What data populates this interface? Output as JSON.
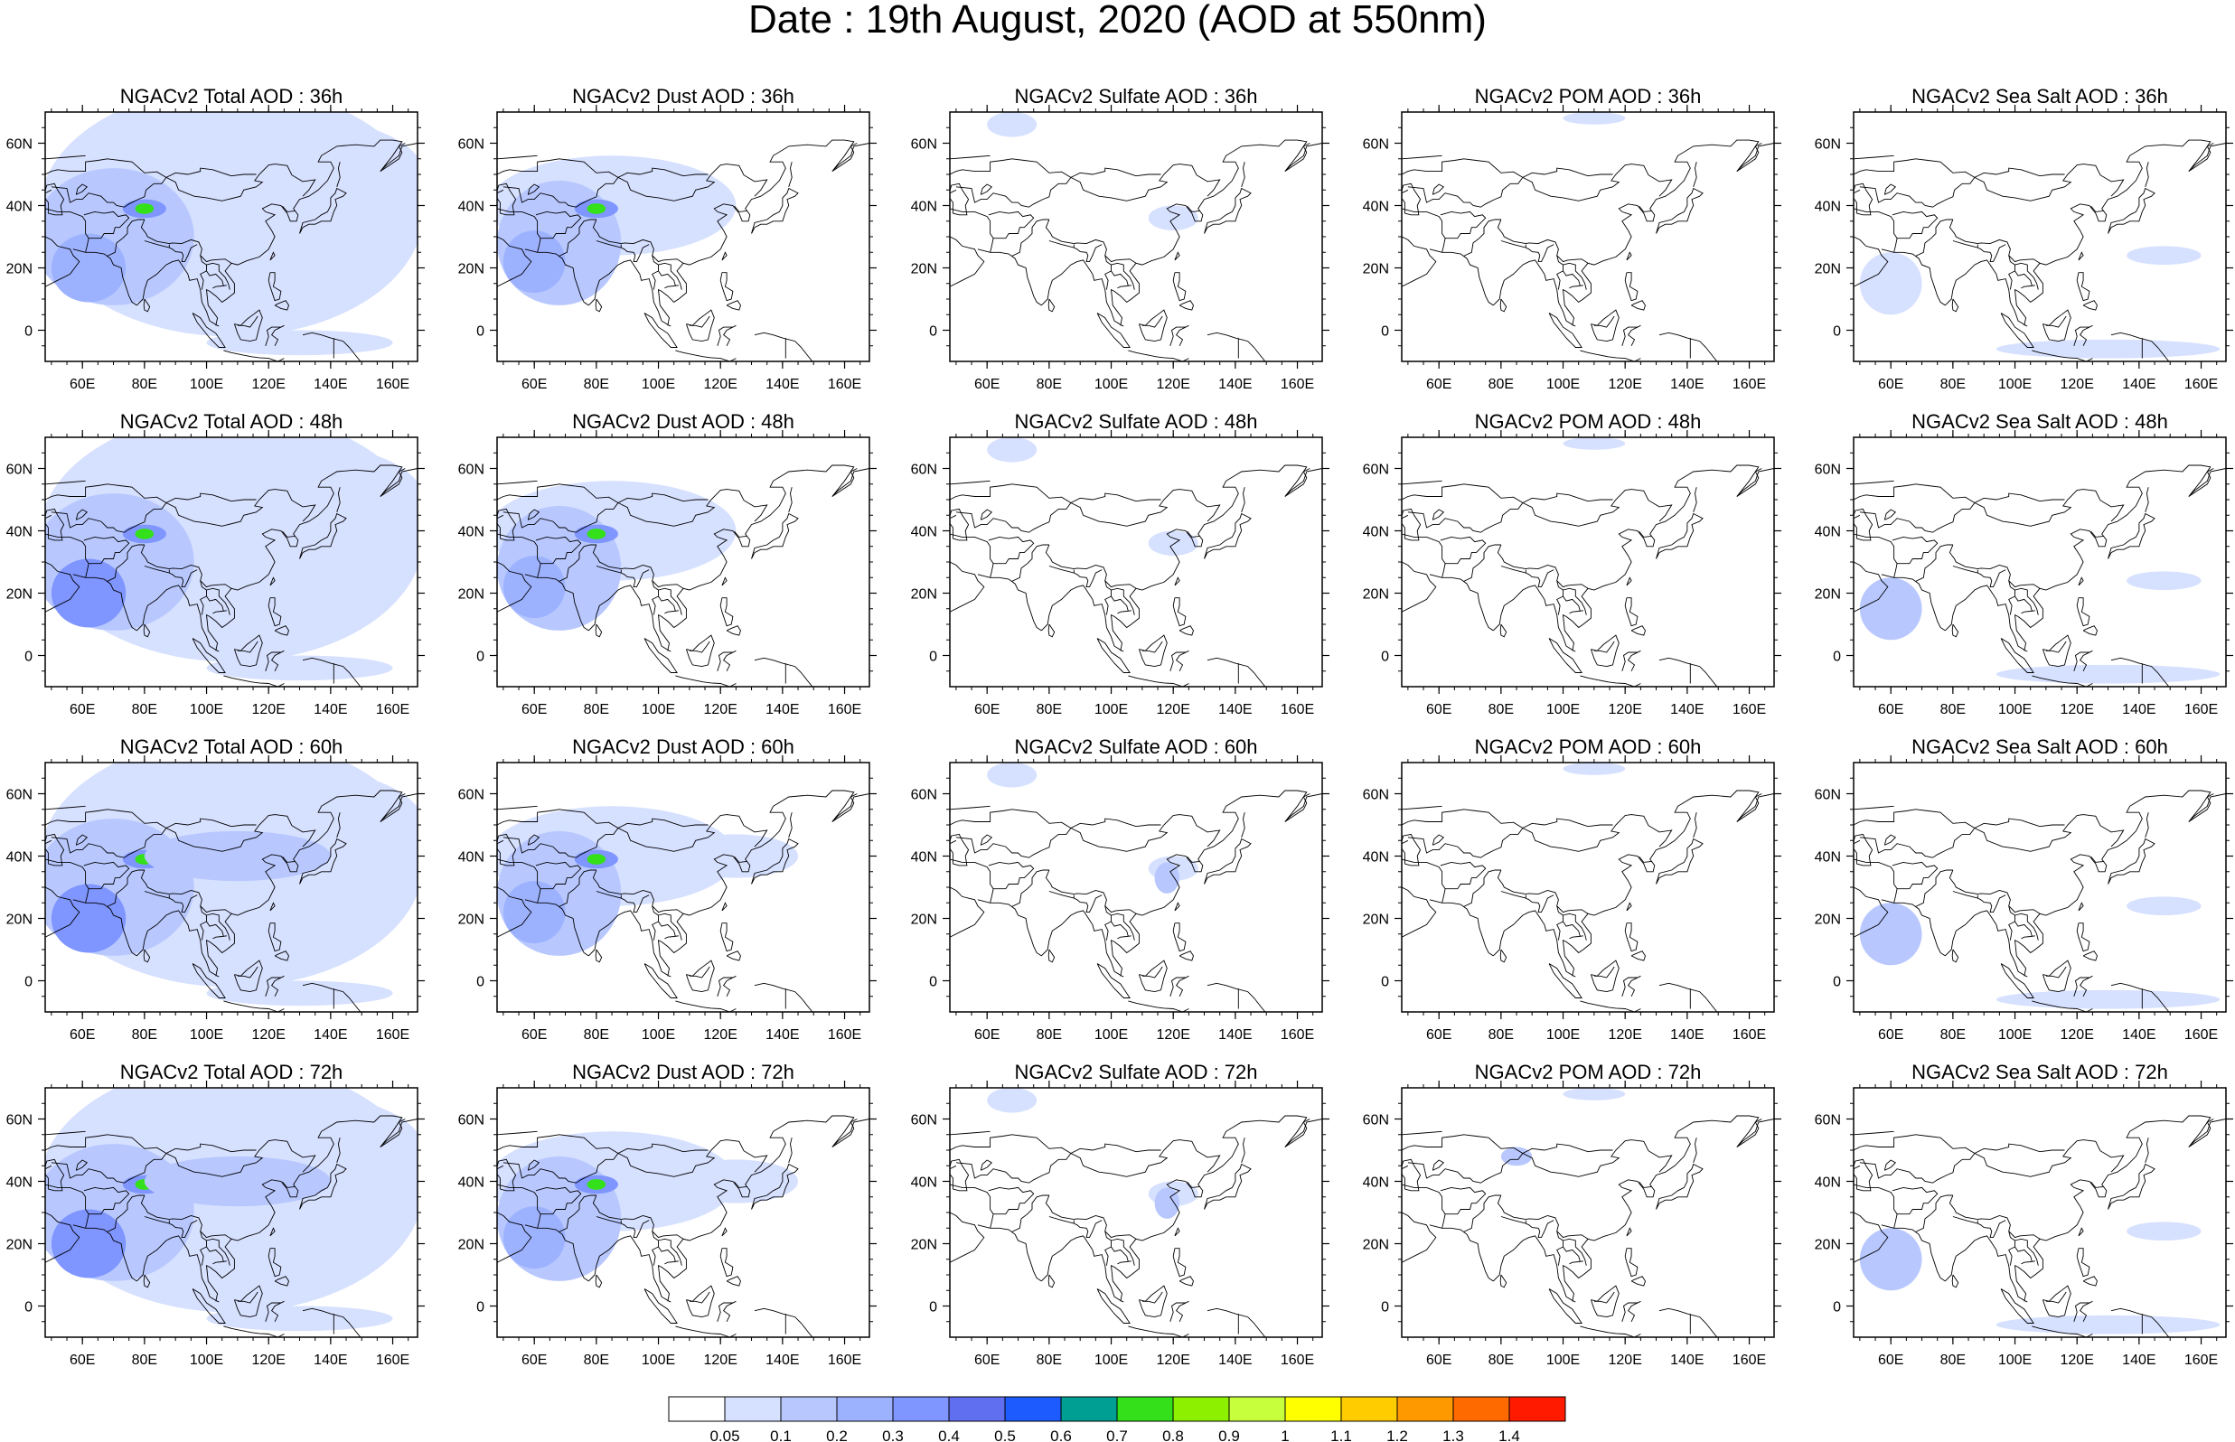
{
  "figure": {
    "title": "Date : 19th August, 2020 (AOD at 550nm)"
  },
  "axes": {
    "lon_ticks": [
      "60E",
      "80E",
      "100E",
      "120E",
      "140E",
      "160E"
    ],
    "lon_values": [
      60,
      80,
      100,
      120,
      140,
      160
    ],
    "lat_ticks": [
      "60N",
      "40N",
      "20N",
      "0"
    ],
    "lat_values": [
      60,
      40,
      20,
      0
    ],
    "lon_range": [
      48,
      168
    ],
    "lat_range": [
      -10,
      70
    ]
  },
  "panels": [
    {
      "title": "NGACv2 Total AOD : 36h",
      "species": "total",
      "hour": 36
    },
    {
      "title": "NGACv2 Dust AOD : 36h",
      "species": "dust",
      "hour": 36
    },
    {
      "title": "NGACv2 Sulfate AOD : 36h",
      "species": "sulfate",
      "hour": 36
    },
    {
      "title": "NGACv2 POM AOD : 36h",
      "species": "pom",
      "hour": 36
    },
    {
      "title": "NGACv2 Sea Salt AOD : 36h",
      "species": "seasalt",
      "hour": 36
    },
    {
      "title": "NGACv2 Total AOD : 48h",
      "species": "total",
      "hour": 48
    },
    {
      "title": "NGACv2 Dust AOD : 48h",
      "species": "dust",
      "hour": 48
    },
    {
      "title": "NGACv2 Sulfate AOD : 48h",
      "species": "sulfate",
      "hour": 48
    },
    {
      "title": "NGACv2 POM AOD : 48h",
      "species": "pom",
      "hour": 48
    },
    {
      "title": "NGACv2 Sea Salt AOD : 48h",
      "species": "seasalt",
      "hour": 48
    },
    {
      "title": "NGACv2 Total AOD : 60h",
      "species": "total",
      "hour": 60
    },
    {
      "title": "NGACv2 Dust AOD : 60h",
      "species": "dust",
      "hour": 60
    },
    {
      "title": "NGACv2 Sulfate AOD : 60h",
      "species": "sulfate",
      "hour": 60
    },
    {
      "title": "NGACv2 POM AOD : 60h",
      "species": "pom",
      "hour": 60
    },
    {
      "title": "NGACv2 Sea Salt AOD : 60h",
      "species": "seasalt",
      "hour": 60
    },
    {
      "title": "NGACv2 Total AOD : 72h",
      "species": "total",
      "hour": 72
    },
    {
      "title": "NGACv2 Dust AOD : 72h",
      "species": "dust",
      "hour": 72
    },
    {
      "title": "NGACv2 Sulfate AOD : 72h",
      "species": "sulfate",
      "hour": 72
    },
    {
      "title": "NGACv2 POM AOD : 72h",
      "species": "pom",
      "hour": 72
    },
    {
      "title": "NGACv2 Sea Salt  AOD : 72h",
      "species": "seasalt",
      "hour": 72
    }
  ],
  "colorbar": {
    "labels": [
      "0.05",
      "0.1",
      "0.2",
      "0.3",
      "0.4",
      "0.5",
      "0.6",
      "0.7",
      "0.8",
      "0.9",
      "1",
      "1.1",
      "1.2",
      "1.3",
      "1.4"
    ],
    "colors": [
      "#ffffff",
      "#d6e0ff",
      "#b8c8ff",
      "#9db2ff",
      "#7f95ff",
      "#5f6ff0",
      "#1e5bff",
      "#009f94",
      "#33e01a",
      "#8cf000",
      "#c8ff3c",
      "#ffff00",
      "#ffcc00",
      "#ff9900",
      "#ff6a00",
      "#ff1a00"
    ]
  }
}
